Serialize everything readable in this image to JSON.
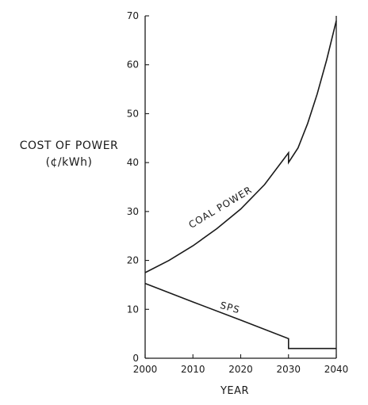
{
  "chart_data": {
    "type": "line",
    "title": "",
    "xlabel": "YEAR",
    "ylabel": "COST OF POWER",
    "ylabel_unit": "(¢/kWh)",
    "xlim": [
      2000,
      2040
    ],
    "ylim": [
      0,
      70
    ],
    "x_ticks": [
      2000,
      2010,
      2020,
      2030,
      2040
    ],
    "y_ticks": [
      0,
      10,
      20,
      30,
      40,
      50,
      60,
      70
    ],
    "grid": false,
    "series": [
      {
        "name": "COAL POWER",
        "x": [
          2000,
          2005,
          2010,
          2015,
          2020,
          2025,
          2030,
          2030,
          2032,
          2034,
          2036,
          2038,
          2040
        ],
        "y": [
          17.5,
          20.0,
          23.0,
          26.5,
          30.5,
          35.5,
          42.0,
          40.0,
          43.0,
          48.0,
          54.0,
          61.0,
          69.0
        ]
      },
      {
        "name": "SPS",
        "x": [
          2000,
          2010,
          2020,
          2030,
          2030,
          2035,
          2040
        ],
        "y": [
          15.3,
          11.5,
          7.8,
          4.0,
          2.0,
          2.0,
          2.0
        ]
      }
    ],
    "annotations": [
      "COAL POWER",
      "SPS"
    ]
  }
}
